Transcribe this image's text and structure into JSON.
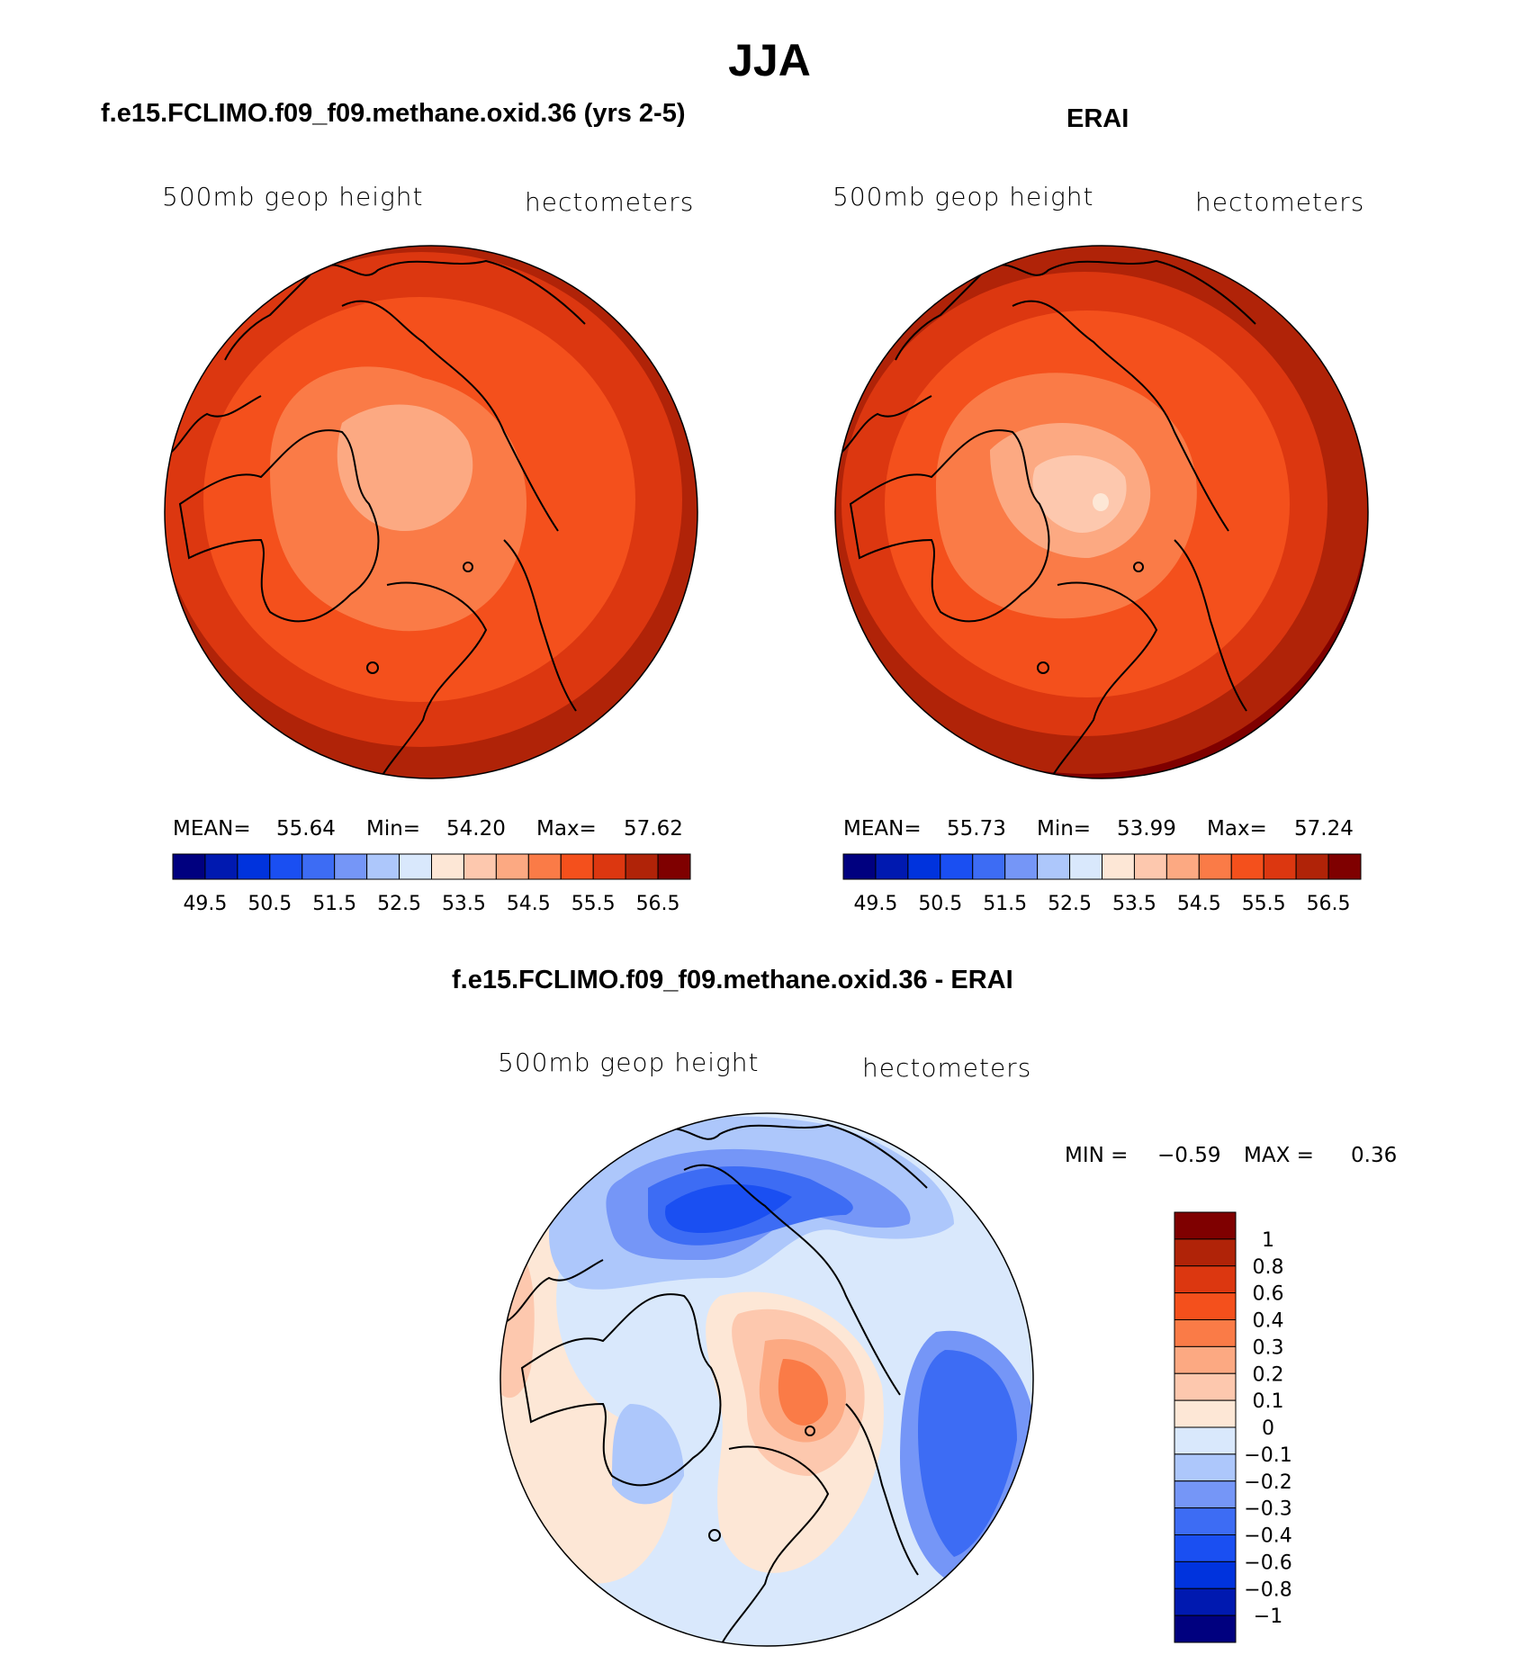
{
  "title": "JJA",
  "panels": {
    "model": {
      "title": "f.e15.FCLIMO.f09_f09.methane.oxid.36 (yrs 2-5)",
      "variable": "500mb geop height",
      "units": "hectometers",
      "mean_label": "MEAN=",
      "mean": "55.64",
      "min_label": "Min=",
      "min": "54.20",
      "max_label": "Max=",
      "max": "57.62"
    },
    "obs": {
      "title": "ERAI",
      "variable": "500mb geop height",
      "units": "hectometers",
      "mean_label": "MEAN=",
      "mean": "55.73",
      "min_label": "Min=",
      "min": "53.99",
      "max_label": "Max=",
      "max": "57.24"
    },
    "diff": {
      "title": "f.e15.FCLIMO.f09_f09.methane.oxid.36 - ERAI",
      "variable": "500mb geop height",
      "units": "hectometers",
      "min_label": "MIN =",
      "min": "-0.59",
      "max_label": "MAX =",
      "max": "0.36"
    }
  },
  "chart_data": [
    {
      "type": "heatmap",
      "projection": "north-polar-stereographic",
      "title": "f.e15.FCLIMO.f09_f09.methane.oxid.36 (yrs 2-5)",
      "variable": "500mb geop height",
      "units": "hectometers",
      "stats": {
        "mean": 55.64,
        "min": 54.2,
        "max": 57.62
      },
      "contour_levels": [
        49.5,
        50,
        50.5,
        51,
        51.5,
        52,
        52.5,
        53,
        53.5,
        54,
        54.5,
        55,
        55.5,
        56,
        56.5
      ],
      "colorbar_tick_labels": [
        "49.5",
        "50.5",
        "51.5",
        "52.5",
        "53.5",
        "54.5",
        "55.5",
        "56.5"
      ],
      "colorbar_colors": [
        "#00007f",
        "#0019b0",
        "#0033dd",
        "#1a4ff2",
        "#3d6cf4",
        "#7596f7",
        "#adc7fb",
        "#d9e8fc",
        "#fde7d6",
        "#fdc8ae",
        "#fca982",
        "#fa7b47",
        "#f4501c",
        "#dc3710",
        "#b02308",
        "#7f0000"
      ],
      "colorbar_orientation": "horizontal"
    },
    {
      "type": "heatmap",
      "projection": "north-polar-stereographic",
      "title": "ERAI",
      "variable": "500mb geop height",
      "units": "hectometers",
      "stats": {
        "mean": 55.73,
        "min": 53.99,
        "max": 57.24
      },
      "contour_levels": [
        49.5,
        50,
        50.5,
        51,
        51.5,
        52,
        52.5,
        53,
        53.5,
        54,
        54.5,
        55,
        55.5,
        56,
        56.5
      ],
      "colorbar_tick_labels": [
        "49.5",
        "50.5",
        "51.5",
        "52.5",
        "53.5",
        "54.5",
        "55.5",
        "56.5"
      ],
      "colorbar_colors": [
        "#00007f",
        "#0019b0",
        "#0033dd",
        "#1a4ff2",
        "#3d6cf4",
        "#7596f7",
        "#adc7fb",
        "#d9e8fc",
        "#fde7d6",
        "#fdc8ae",
        "#fca982",
        "#fa7b47",
        "#f4501c",
        "#dc3710",
        "#b02308",
        "#7f0000"
      ],
      "colorbar_orientation": "horizontal"
    },
    {
      "type": "heatmap",
      "projection": "north-polar-stereographic",
      "title": "f.e15.FCLIMO.f09_f09.methane.oxid.36 - ERAI",
      "variable": "500mb geop height",
      "units": "hectometers",
      "stats": {
        "min": -0.59,
        "max": 0.36
      },
      "contour_levels": [
        -1,
        -0.8,
        -0.6,
        -0.4,
        -0.3,
        -0.2,
        -0.1,
        0,
        0.1,
        0.2,
        0.3,
        0.4,
        0.6,
        0.8,
        1
      ],
      "colorbar_tick_labels": [
        "1",
        "0.8",
        "0.6",
        "0.4",
        "0.3",
        "0.2",
        "0.1",
        "0",
        "−0.1",
        "−0.2",
        "−0.3",
        "−0.4",
        "−0.6",
        "−0.8",
        "−1"
      ],
      "colorbar_colors": [
        "#7f0000",
        "#b02308",
        "#dc3710",
        "#f4501c",
        "#fa7b47",
        "#fca982",
        "#fdc8ae",
        "#fde7d6",
        "#d9e8fc",
        "#adc7fb",
        "#7596f7",
        "#3d6cf4",
        "#1a4ff2",
        "#0033dd",
        "#0019b0",
        "#00007f"
      ],
      "colorbar_orientation": "vertical"
    }
  ]
}
